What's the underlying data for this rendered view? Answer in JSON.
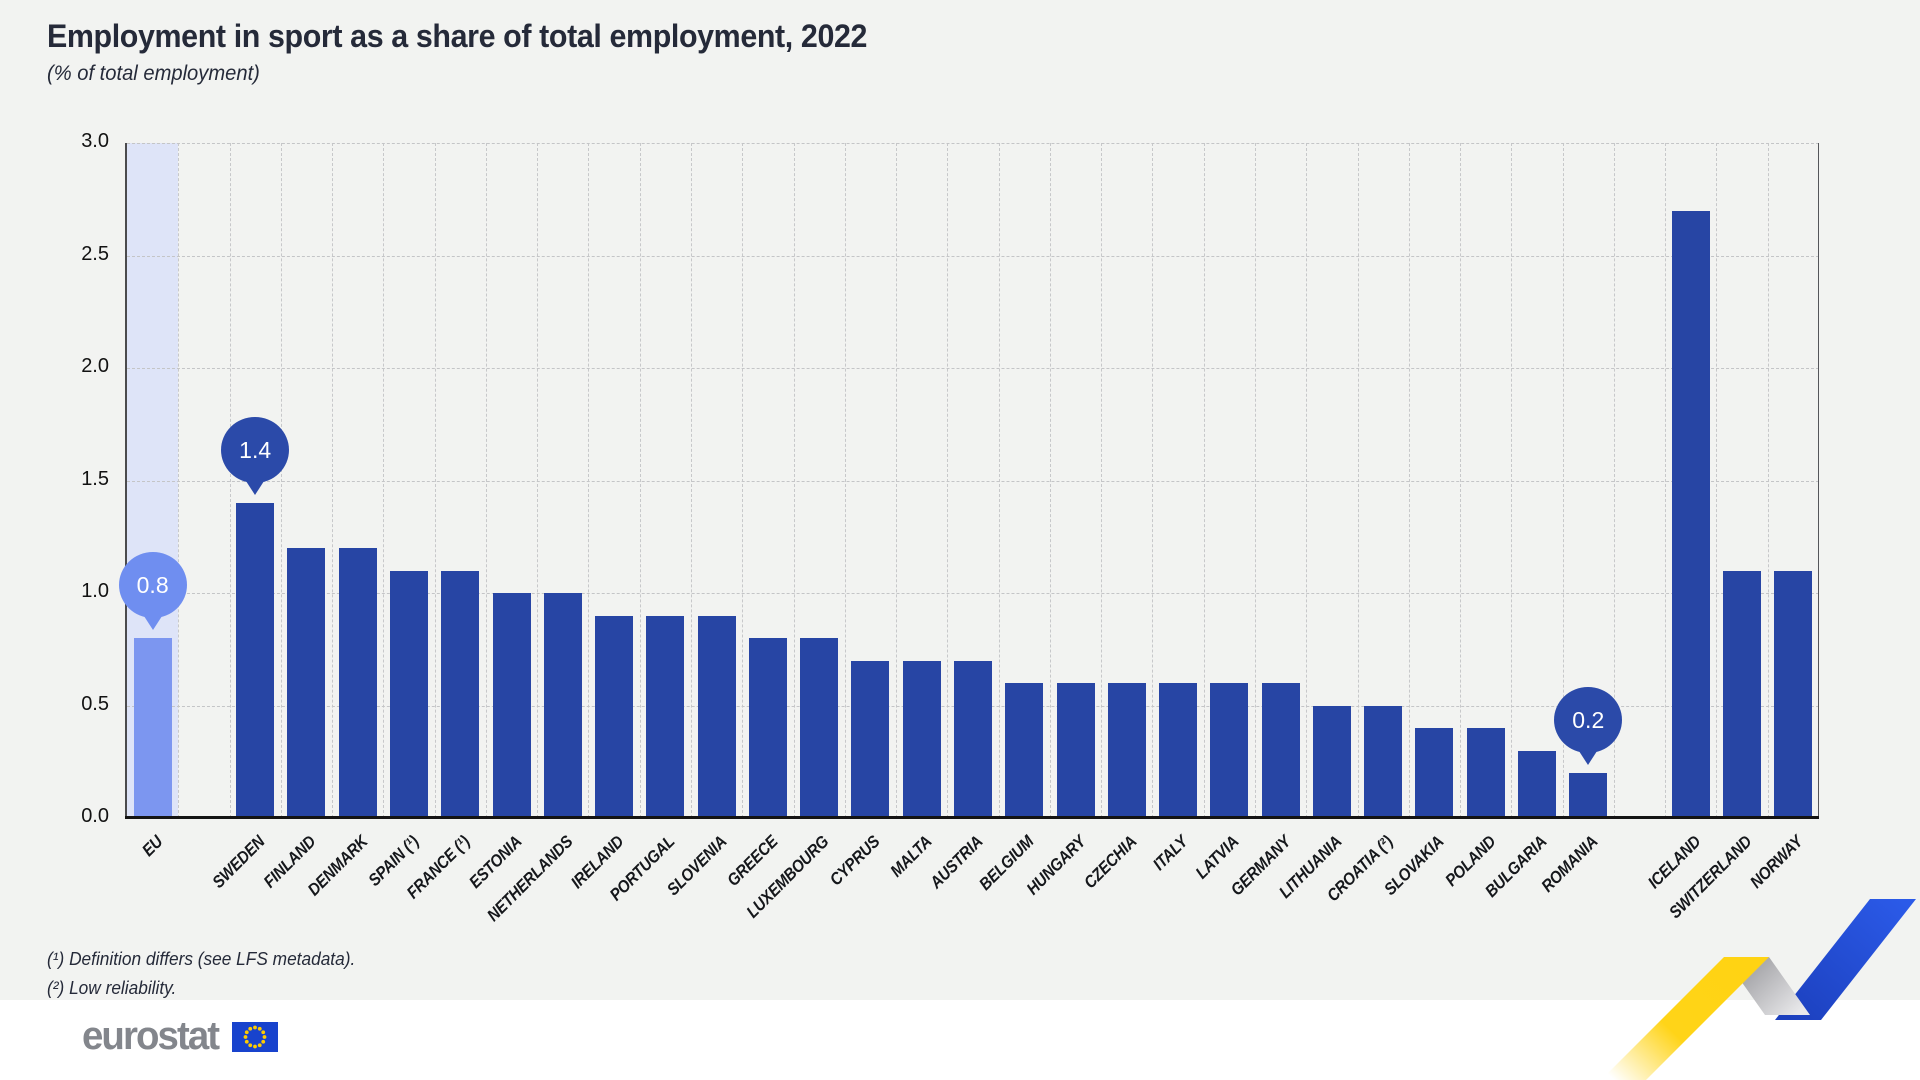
{
  "chart_data": {
    "type": "bar",
    "title": "Employment in sport as a share of total employment, 2022",
    "subtitle": "(% of total employment)",
    "xlabel": "",
    "ylabel": "% of total employment",
    "ylim": [
      0,
      3.0
    ],
    "grid": true,
    "y_ticks": [
      {
        "label": "3.0",
        "value": 3.0
      },
      {
        "label": "2.5",
        "value": 2.5
      },
      {
        "label": "2.0",
        "value": 2.0
      },
      {
        "label": "1.5",
        "value": 1.5
      },
      {
        "label": "1.0",
        "value": 1.0
      },
      {
        "label": "0.5",
        "value": 0.5
      },
      {
        "label": "0.0",
        "value": 0.0
      }
    ],
    "bars": [
      {
        "label": "EU",
        "value": 0.8,
        "slot": 0,
        "group": "eu"
      },
      {
        "label": "SWEDEN",
        "value": 1.4,
        "slot": 2,
        "group": "country"
      },
      {
        "label": "FINLAND",
        "value": 1.2,
        "slot": 3,
        "group": "country"
      },
      {
        "label": "DENMARK",
        "value": 1.2,
        "slot": 4,
        "group": "country"
      },
      {
        "label": "SPAIN (¹)",
        "value": 1.1,
        "slot": 5,
        "group": "country"
      },
      {
        "label": "FRANCE (¹)",
        "value": 1.1,
        "slot": 6,
        "group": "country"
      },
      {
        "label": "ESTONIA",
        "value": 1.0,
        "slot": 7,
        "group": "country"
      },
      {
        "label": "NETHERLANDS",
        "value": 1.0,
        "slot": 8,
        "group": "country"
      },
      {
        "label": "IRELAND",
        "value": 0.9,
        "slot": 9,
        "group": "country"
      },
      {
        "label": "PORTUGAL",
        "value": 0.9,
        "slot": 10,
        "group": "country"
      },
      {
        "label": "SLOVENIA",
        "value": 0.9,
        "slot": 11,
        "group": "country"
      },
      {
        "label": "GREECE",
        "value": 0.8,
        "slot": 12,
        "group": "country"
      },
      {
        "label": "LUXEMBOURG",
        "value": 0.8,
        "slot": 13,
        "group": "country"
      },
      {
        "label": "CYPRUS",
        "value": 0.7,
        "slot": 14,
        "group": "country"
      },
      {
        "label": "MALTA",
        "value": 0.7,
        "slot": 15,
        "group": "country"
      },
      {
        "label": "AUSTRIA",
        "value": 0.7,
        "slot": 16,
        "group": "country"
      },
      {
        "label": "BELGIUM",
        "value": 0.6,
        "slot": 17,
        "group": "country"
      },
      {
        "label": "HUNGARY",
        "value": 0.6,
        "slot": 18,
        "group": "country"
      },
      {
        "label": "CZECHIA",
        "value": 0.6,
        "slot": 19,
        "group": "country"
      },
      {
        "label": "ITALY",
        "value": 0.6,
        "slot": 20,
        "group": "country"
      },
      {
        "label": "LATVIA",
        "value": 0.6,
        "slot": 21,
        "group": "country"
      },
      {
        "label": "GERMANY",
        "value": 0.6,
        "slot": 22,
        "group": "country"
      },
      {
        "label": "LITHUANIA",
        "value": 0.5,
        "slot": 23,
        "group": "country"
      },
      {
        "label": "CROATIA (²)",
        "value": 0.5,
        "slot": 24,
        "group": "country"
      },
      {
        "label": "SLOVAKIA",
        "value": 0.4,
        "slot": 25,
        "group": "country"
      },
      {
        "label": "POLAND",
        "value": 0.4,
        "slot": 26,
        "group": "country"
      },
      {
        "label": "BULGARIA",
        "value": 0.3,
        "slot": 27,
        "group": "country"
      },
      {
        "label": "ROMANIA",
        "value": 0.2,
        "slot": 28,
        "group": "country"
      },
      {
        "label": "ICELAND",
        "value": 2.7,
        "slot": 30,
        "group": "efta"
      },
      {
        "label": "SWITZERLAND",
        "value": 1.1,
        "slot": 31,
        "group": "efta"
      },
      {
        "label": "NORWAY",
        "value": 1.1,
        "slot": 32,
        "group": "efta"
      }
    ],
    "callouts": [
      {
        "value": "0.8",
        "slot": 0,
        "variant": "light"
      },
      {
        "value": "1.4",
        "slot": 2,
        "variant": "dark"
      },
      {
        "value": "0.2",
        "slot": 28,
        "variant": "dark"
      }
    ],
    "total_slots": 33
  },
  "footnotes": [
    "(¹) Definition differs (see LFS metadata).",
    "(²) Low reliability."
  ],
  "logo": {
    "text": "eurostat"
  },
  "colors": {
    "background": "#F2F3F1",
    "footer_band": "#FFFFFF",
    "bar": "#2745A4",
    "eu_bar": "#7C96F0",
    "eu_band": "#DEE4F8",
    "callout_dark": "#2B4AA9",
    "callout_light": "#6F8EF0",
    "gridline": "#C7C8CA",
    "title_text": "#252A39",
    "logo_gray": "#83868C",
    "flag_blue": "#1843CD",
    "flag_stars": "#FFCC00",
    "ribbon_yellow": "#FFD414",
    "ribbon_gray": "#97979B",
    "ribbon_blue": "#2450DC"
  }
}
